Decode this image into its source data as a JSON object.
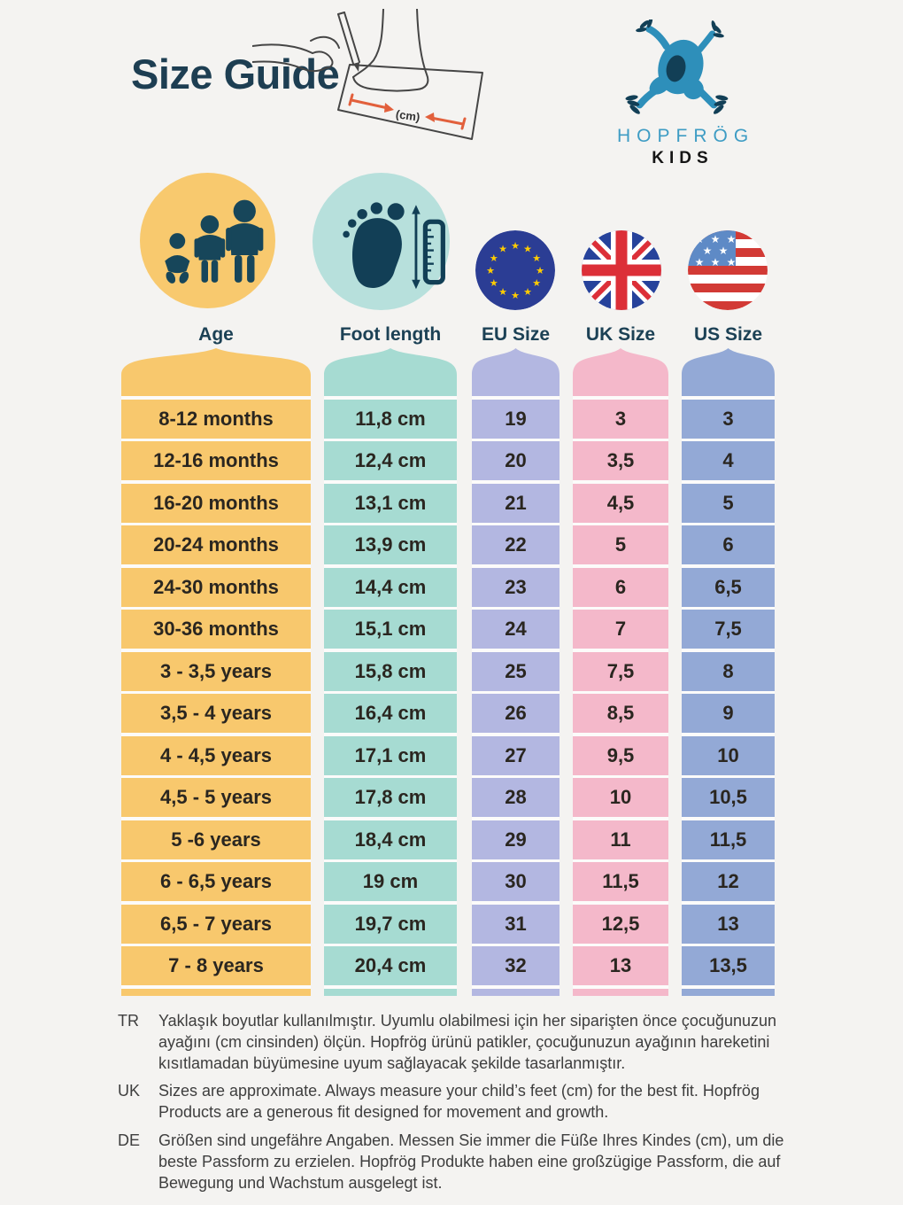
{
  "page": {
    "title": "Size Guide",
    "background": "#F4F3F1",
    "text_navy": "#1C4155"
  },
  "logo": {
    "brand_line1": "HOPFRÖG",
    "brand_line2": "KIDS",
    "frog_blue": "#2E8FBA",
    "frog_dark": "#123F56"
  },
  "illustration": {
    "cm_label": "(cm)",
    "arrow_color": "#E2603C"
  },
  "columns": [
    {
      "key": "age",
      "label": "Age",
      "color": "#F8C86D",
      "circle_color": "#F8C96E",
      "icon": "age-people-icon"
    },
    {
      "key": "foot",
      "label": "Foot length",
      "color": "#A6DBD2",
      "circle_color": "#B7E0DC",
      "icon": "foot-ruler-icon"
    },
    {
      "key": "eu",
      "label": "EU Size",
      "color": "#B3B7E1",
      "icon": "eu-flag-icon"
    },
    {
      "key": "uk",
      "label": "UK Size",
      "color": "#F4B8CA",
      "icon": "uk-flag-icon"
    },
    {
      "key": "us",
      "label": "US Size",
      "color": "#93A9D6",
      "icon": "us-flag-icon"
    }
  ],
  "flag_colors": {
    "eu_blue": "#2B3D94",
    "star_gold": "#FFCC00",
    "uk_blue": "#26429B",
    "uk_red": "#DC2F38",
    "us_red": "#D23A35",
    "us_canton": "#5E8AC6"
  },
  "chart_data": {
    "type": "table",
    "title": "Size Guide",
    "columns": [
      "Age",
      "Foot length",
      "EU Size",
      "UK Size",
      "US Size"
    ],
    "rows": [
      [
        "8-12 months",
        "11,8 cm",
        "19",
        "3",
        "3"
      ],
      [
        "12-16 months",
        "12,4 cm",
        "20",
        "3,5",
        "4"
      ],
      [
        "16-20 months",
        "13,1 cm",
        "21",
        "4,5",
        "5"
      ],
      [
        "20-24 months",
        "13,9 cm",
        "22",
        "5",
        "6"
      ],
      [
        "24-30 months",
        "14,4 cm",
        "23",
        "6",
        "6,5"
      ],
      [
        "30-36 months",
        "15,1 cm",
        "24",
        "7",
        "7,5"
      ],
      [
        "3 - 3,5 years",
        "15,8 cm",
        "25",
        "7,5",
        "8"
      ],
      [
        "3,5 - 4 years",
        "16,4 cm",
        "26",
        "8,5",
        "9"
      ],
      [
        "4 - 4,5 years",
        "17,1 cm",
        "27",
        "9,5",
        "10"
      ],
      [
        "4,5 - 5 years",
        "17,8 cm",
        "28",
        "10",
        "10,5"
      ],
      [
        "5 -6 years",
        "18,4 cm",
        "29",
        "11",
        "11,5"
      ],
      [
        "6 - 6,5 years",
        "19 cm",
        "30",
        "11,5",
        "12"
      ],
      [
        "6,5 - 7 years",
        "19,7 cm",
        "31",
        "12,5",
        "13"
      ],
      [
        "7 - 8 years",
        "20,4 cm",
        "32",
        "13",
        "13,5"
      ]
    ]
  },
  "notes": [
    {
      "lang": "TR",
      "text": "Yaklaşık boyutlar kullanılmıştır. Uyumlu olabilmesi için her siparişten önce çocuğunuzun ayağını (cm cinsinden) ölçün. Hopfrög ürünü patikler, çocuğunuzun ayağının hareketini kısıtlamadan büyümesine uyum sağlayacak şekilde tasarlanmıştır."
    },
    {
      "lang": "UK",
      "text": "Sizes are approximate. Always measure your child’s feet (cm) for the best fit. Hopfrög Products are a generous fit designed for movement and growth."
    },
    {
      "lang": "DE",
      "text": "Größen sind ungefähre Angaben. Messen Sie immer die Füße Ihres Kindes (cm), um die beste Passform zu erzielen. Hopfrög Produkte haben eine großzügige Passform, die auf Bewegung und Wachstum ausgelegt ist."
    }
  ]
}
